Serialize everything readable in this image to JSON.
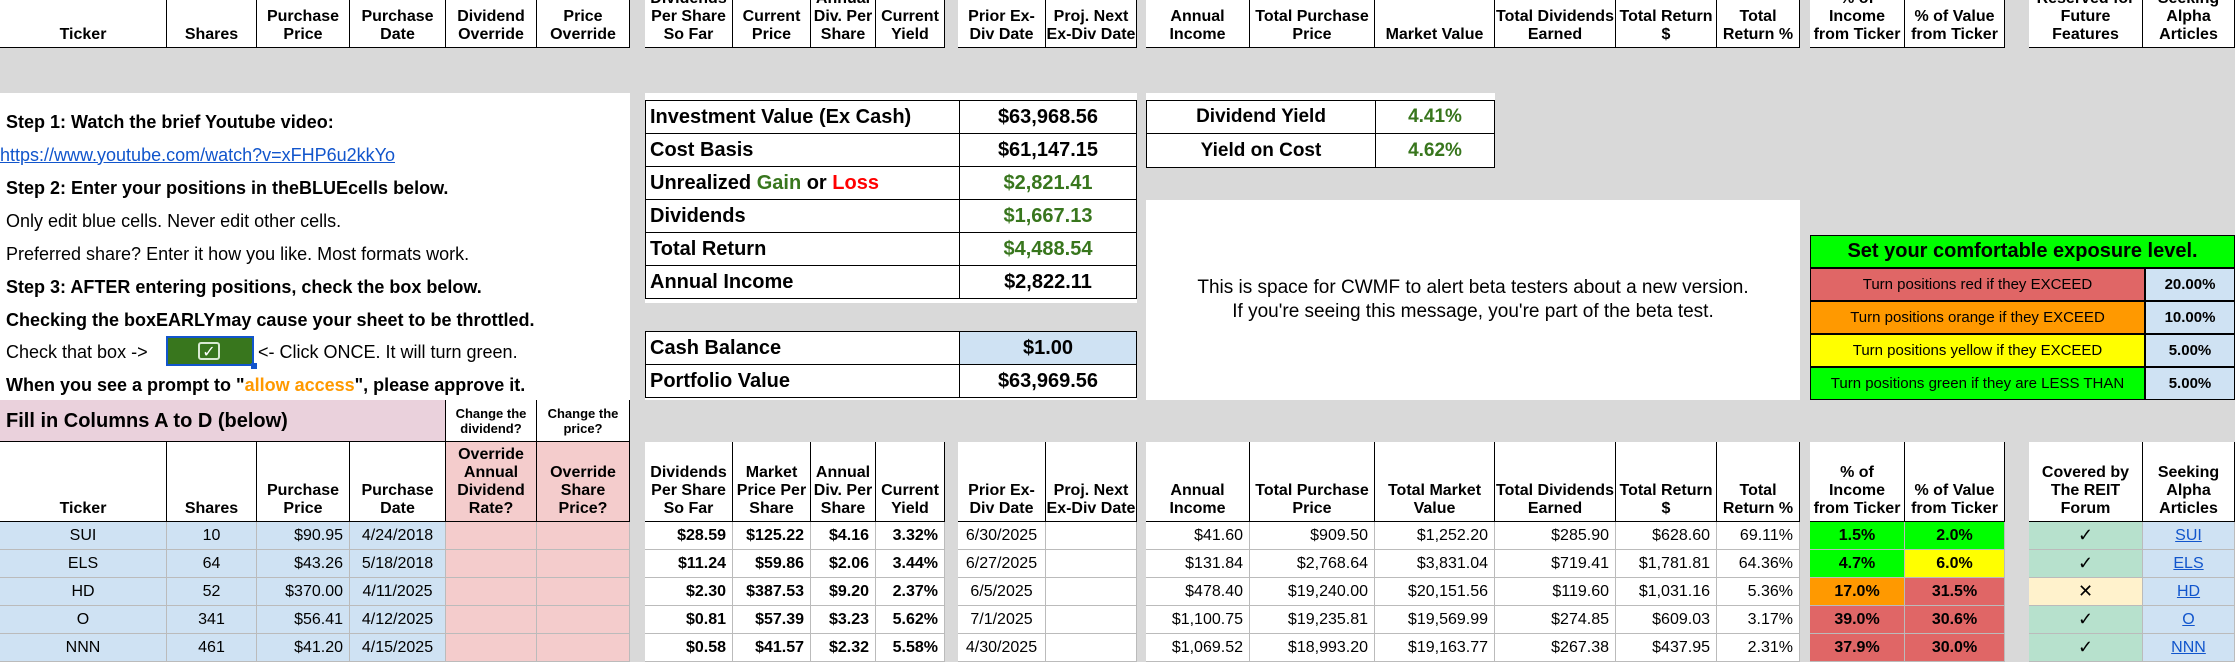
{
  "top_headers": [
    "Ticker",
    "Shares",
    "Purchase Price",
    "Purchase Date",
    "Dividend Override",
    "Price Override",
    "Dividends Per Share So Far",
    "Current Price",
    "Annual Div. Per Share",
    "Current Yield",
    "Prior Ex-Div Date",
    "Proj. Next Ex-Div Date",
    "Annual Income",
    "Total Purchase Price",
    "Market Value",
    "Total Dividends Earned",
    "Total Return $",
    "Total Return %",
    "% of Income from Ticker",
    "% of Value from Ticker",
    "Reserved for Future Features",
    "Seeking Alpha Articles"
  ],
  "instructions": {
    "step1": "Step 1: Watch the brief Youtube video:",
    "link": "https://www.youtube.com/watch?v=xFHP6u2kkYo",
    "step2_a": "Step 2: Enter your positions in the ",
    "step2_blue": "BLUE",
    "step2_b": " cells below.",
    "only_edit": "Only edit blue cells. Never edit other cells.",
    "preferred": "Preferred share? Enter it how you like. Most formats work.",
    "step3": "Step 3: AFTER entering positions, check the box below.",
    "checking_a": "Checking the box ",
    "checking_early": "EARLY",
    "checking_b": " may cause your sheet to be throttled.",
    "check_that": "Check that box ->",
    "click_once": "<- Click ONCE. It will turn green.",
    "prompt_a": "When you see a prompt to \"",
    "prompt_allow": "allow access",
    "prompt_b": "\", please approve it."
  },
  "summary": {
    "investment_label": "Investment Value (Ex Cash)",
    "investment_value": "$63,968.56",
    "cost_label": "Cost Basis",
    "cost_value": "$61,147.15",
    "unrealized_a": "Unrealized ",
    "unrealized_gain": "Gain",
    "unrealized_or": " or ",
    "unrealized_loss": "Loss",
    "unrealized_value": "$2,821.41",
    "dividends_label": "Dividends",
    "dividends_value": "$1,667.13",
    "total_return_label": "Total Return",
    "total_return_value": "$4,488.54",
    "annual_income_label": "Annual Income",
    "annual_income_value": "$2,822.11",
    "cash_label": "Cash Balance",
    "cash_value": "$1.00",
    "portfolio_label": "Portfolio Value",
    "portfolio_value": "$63,969.56"
  },
  "yield_box": {
    "div_yield_label": "Dividend Yield",
    "div_yield_value": "4.41%",
    "yoc_label": "Yield on Cost",
    "yoc_value": "4.62%"
  },
  "alert": {
    "line1": "This is space for CWMF to alert beta testers about a new version.",
    "line2": "If you're seeing this message, you're part of the beta test."
  },
  "exposure": {
    "title": "Set your comfortable exposure level.",
    "rows": [
      {
        "label": "Turn positions red if they EXCEED",
        "value": "20.00%"
      },
      {
        "label": "Turn positions orange if they EXCEED",
        "value": "10.00%"
      },
      {
        "label": "Turn positions yellow if they EXCEED",
        "value": "5.00%"
      },
      {
        "label": "Turn positions green if they are LESS THAN",
        "value": "5.00%"
      }
    ]
  },
  "fill_in": {
    "title": "Fill in Columns A to D (below)",
    "change_dividend": "Change the dividend?",
    "change_price": "Change the price?"
  },
  "lower_headers": [
    "Ticker",
    "Shares",
    "Purchase Price",
    "Purchase Date",
    "Override Annual Dividend Rate?",
    "Override Share Price?",
    "Dividends Per Share So Far",
    "Market Price Per Share",
    "Annual Div. Per Share",
    "Current Yield",
    "Prior Ex-Div Date",
    "Proj. Next Ex-Div Date",
    "Annual Income",
    "Total Purchase Price",
    "Total Market Value",
    "Total Dividends Earned",
    "Total Return $",
    "Total Return %",
    "% of Income from Ticker",
    "% of Value from Ticker",
    "Covered by The REIT Forum",
    "Seeking Alpha Articles"
  ],
  "rows": [
    {
      "ticker": "SUI",
      "shares": "10",
      "price": "$90.95",
      "date": "4/24/2018",
      "dps": "$28.59",
      "mkt": "$125.22",
      "adiv": "$4.16",
      "yield": "3.32%",
      "prior": "6/30/2025",
      "next": "",
      "income": "$41.60",
      "tpp": "$909.50",
      "tmv": "$1,252.20",
      "tde": "$285.90",
      "tr": "$628.60",
      "trp": "69.11%",
      "pinc": "1.5%",
      "pval": "2.0%",
      "covered": "✓",
      "sa": "SUI",
      "inc_color": "#00ff00",
      "val_color": "#00ff00"
    },
    {
      "ticker": "ELS",
      "shares": "64",
      "price": "$43.26",
      "date": "5/18/2018",
      "dps": "$11.24",
      "mkt": "$59.86",
      "adiv": "$2.06",
      "yield": "3.44%",
      "prior": "6/27/2025",
      "next": "",
      "income": "$131.84",
      "tpp": "$2,768.64",
      "tmv": "$3,831.04",
      "tde": "$719.41",
      "tr": "$1,781.81",
      "trp": "64.36%",
      "pinc": "4.7%",
      "pval": "6.0%",
      "covered": "✓",
      "sa": "ELS",
      "inc_color": "#00ff00",
      "val_color": "#ffff00"
    },
    {
      "ticker": "HD",
      "shares": "52",
      "price": "$370.00",
      "date": "4/11/2025",
      "dps": "$2.30",
      "mkt": "$387.53",
      "adiv": "$9.20",
      "yield": "2.37%",
      "prior": "6/5/2025",
      "next": "",
      "income": "$478.40",
      "tpp": "$19,240.00",
      "tmv": "$20,151.56",
      "tde": "$119.60",
      "tr": "$1,031.16",
      "trp": "5.36%",
      "pinc": "17.0%",
      "pval": "31.5%",
      "covered": "✕",
      "sa": "HD",
      "inc_color": "#ff9900",
      "val_color": "#e06666"
    },
    {
      "ticker": "O",
      "shares": "341",
      "price": "$56.41",
      "date": "4/12/2025",
      "dps": "$0.81",
      "mkt": "$57.39",
      "adiv": "$3.23",
      "yield": "5.62%",
      "prior": "7/1/2025",
      "next": "",
      "income": "$1,100.75",
      "tpp": "$19,235.81",
      "tmv": "$19,569.99",
      "tde": "$274.85",
      "tr": "$609.03",
      "trp": "3.17%",
      "pinc": "39.0%",
      "pval": "30.6%",
      "covered": "✓",
      "sa": "O",
      "inc_color": "#e06666",
      "val_color": "#e06666"
    },
    {
      "ticker": "NNN",
      "shares": "461",
      "price": "$41.20",
      "date": "4/15/2025",
      "dps": "$0.58",
      "mkt": "$41.57",
      "adiv": "$2.32",
      "yield": "5.58%",
      "prior": "4/30/2025",
      "next": "",
      "income": "$1,069.52",
      "tpp": "$18,993.20",
      "tmv": "$19,163.77",
      "tde": "$267.38",
      "tr": "$437.95",
      "trp": "2.31%",
      "pinc": "37.9%",
      "pval": "30.0%",
      "covered": "✓",
      "sa": "NNN",
      "inc_color": "#e06666",
      "val_color": "#e06666"
    }
  ],
  "colors": {
    "blue_cell": "#cfe2f3",
    "pink_cell": "#f4cccc",
    "gray_gap": "#d9d9d9",
    "gain_green": "#38761d",
    "loss_red": "#ff0000",
    "bright_green": "#00ff00",
    "link_blue": "#1155cc",
    "orange_text": "#ff9900"
  }
}
